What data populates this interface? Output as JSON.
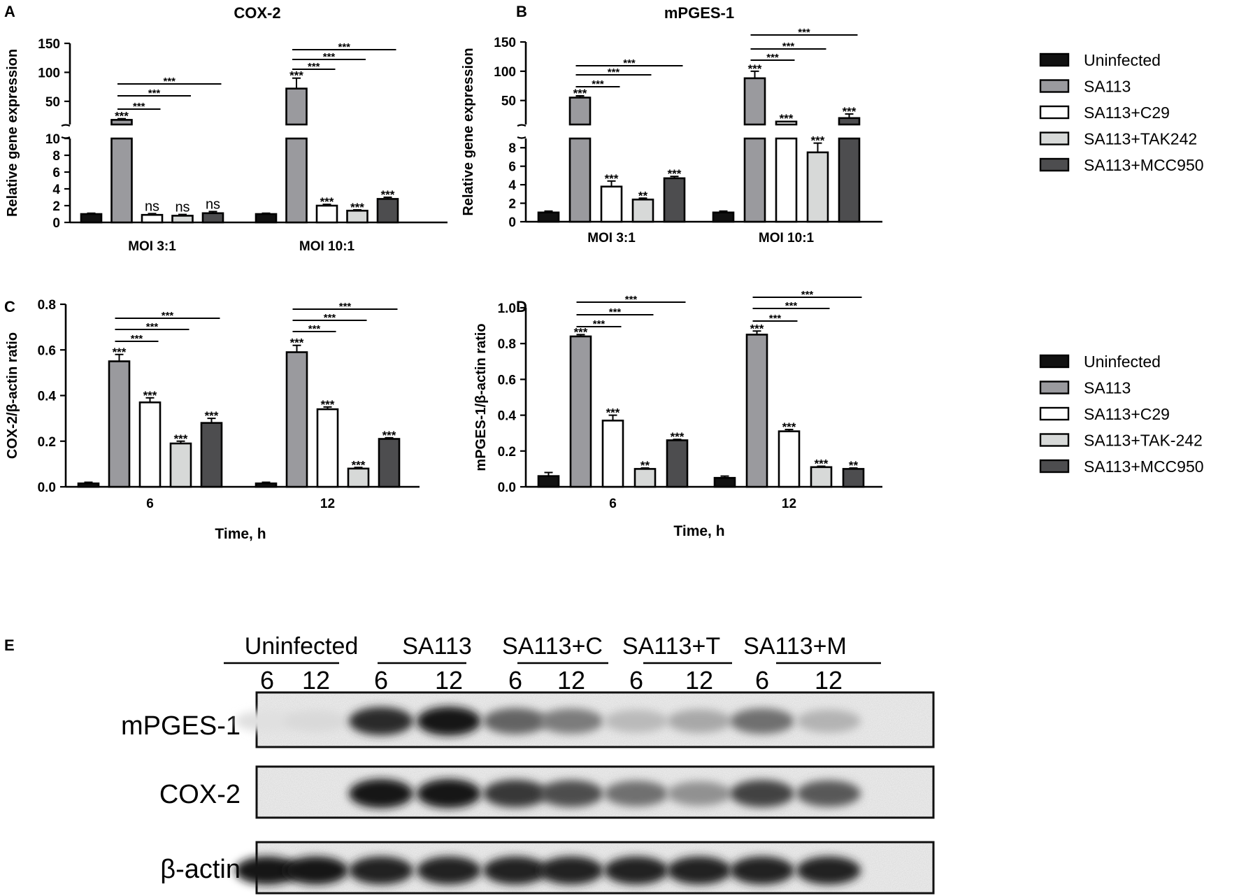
{
  "colors": {
    "Uninfected": "#111111",
    "SA113": "#9a9a9e",
    "SA113+C29": "#ffffff",
    "SA113+TAK242": "#d7d9d8",
    "SA113+MCC950": "#4d4d4f"
  },
  "legend_top": {
    "entries": [
      {
        "label": "Uninfected",
        "color_key": "Uninfected"
      },
      {
        "label": "SA113",
        "color_key": "SA113"
      },
      {
        "label": "SA113+C29",
        "color_key": "SA113+C29"
      },
      {
        "label": "SA113+TAK242",
        "color_key": "SA113+TAK242"
      },
      {
        "label": "SA113+MCC950",
        "color_key": "SA113+MCC950"
      }
    ]
  },
  "legend_bottom": {
    "entries": [
      {
        "label": "Uninfected",
        "color_key": "Uninfected"
      },
      {
        "label": "SA113",
        "color_key": "SA113"
      },
      {
        "label": "SA113+C29",
        "color_key": "SA113+C29"
      },
      {
        "label": "SA113+TAK-242",
        "color_key": "SA113+TAK242"
      },
      {
        "label": "SA113+MCC950",
        "color_key": "SA113+MCC950"
      }
    ]
  },
  "chart_data": [
    {
      "panel": "A",
      "type": "bar",
      "title": "COX-2",
      "ylabel": "Relative gene expression",
      "xlabel": "",
      "categories": [
        "MOI 3:1",
        "MOI 10:1"
      ],
      "axis_break": true,
      "lower_ylim": [
        0,
        10
      ],
      "lower_ticks": [
        0,
        2,
        4,
        6,
        8,
        10
      ],
      "upper_ylim": [
        10,
        150
      ],
      "upper_ticks": [
        50,
        100,
        150
      ],
      "series": [
        {
          "color_key": "Uninfected",
          "values": [
            1.0,
            1.0
          ],
          "errors": [
            0.1,
            0.1
          ],
          "labels": [
            "",
            ""
          ]
        },
        {
          "color_key": "SA113",
          "values": [
            18,
            72
          ],
          "errors": [
            2,
            18
          ],
          "labels": [
            "***",
            "***"
          ]
        },
        {
          "color_key": "SA113+C29",
          "values": [
            0.9,
            2.0
          ],
          "errors": [
            0.15,
            0.15
          ],
          "labels": [
            "ns",
            "***"
          ]
        },
        {
          "color_key": "SA113+TAK242",
          "values": [
            0.8,
            1.4
          ],
          "errors": [
            0.15,
            0.1
          ],
          "labels": [
            "ns",
            "***"
          ]
        },
        {
          "color_key": "SA113+MCC950",
          "values": [
            1.1,
            2.8
          ],
          "errors": [
            0.2,
            0.2
          ],
          "labels": [
            "ns",
            "***"
          ]
        }
      ],
      "brackets": [
        {
          "group": 0,
          "from": 1,
          "to": 2,
          "label": "***"
        },
        {
          "group": 0,
          "from": 1,
          "to": 3,
          "label": "***"
        },
        {
          "group": 0,
          "from": 1,
          "to": 4,
          "label": "***"
        },
        {
          "group": 1,
          "from": 1,
          "to": 2,
          "label": "***"
        },
        {
          "group": 1,
          "from": 1,
          "to": 3,
          "label": "***"
        },
        {
          "group": 1,
          "from": 1,
          "to": 4,
          "label": "***"
        }
      ]
    },
    {
      "panel": "B",
      "type": "bar",
      "title": "mPGES-1",
      "ylabel": "Relative gene expression",
      "xlabel": "",
      "categories": [
        "MOI 3:1",
        "MOI 10:1"
      ],
      "axis_break": true,
      "lower_ylim": [
        0,
        9
      ],
      "lower_ticks": [
        0,
        2,
        4,
        6,
        8
      ],
      "upper_ylim": [
        9,
        150
      ],
      "upper_ticks": [
        50,
        100,
        150
      ],
      "series": [
        {
          "color_key": "Uninfected",
          "values": [
            1.0,
            1.0
          ],
          "errors": [
            0.15,
            0.15
          ],
          "labels": [
            "",
            ""
          ]
        },
        {
          "color_key": "SA113",
          "values": [
            55,
            88
          ],
          "errors": [
            3,
            12
          ],
          "labels": [
            "***",
            "***"
          ]
        },
        {
          "color_key": "SA113+C29",
          "values": [
            3.8,
            14
          ],
          "errors": [
            0.6,
            1
          ],
          "labels": [
            "***",
            "***"
          ]
        },
        {
          "color_key": "SA113+TAK242",
          "values": [
            2.4,
            7.5
          ],
          "errors": [
            0.15,
            1.0
          ],
          "labels": [
            "**",
            "***"
          ]
        },
        {
          "color_key": "SA113+MCC950",
          "values": [
            4.7,
            20
          ],
          "errors": [
            0.2,
            7
          ],
          "labels": [
            "***",
            "***"
          ]
        }
      ],
      "brackets": [
        {
          "group": 0,
          "from": 1,
          "to": 2,
          "label": "***"
        },
        {
          "group": 0,
          "from": 1,
          "to": 3,
          "label": "***"
        },
        {
          "group": 0,
          "from": 1,
          "to": 4,
          "label": "***"
        },
        {
          "group": 1,
          "from": 1,
          "to": 2,
          "label": "***"
        },
        {
          "group": 1,
          "from": 1,
          "to": 3,
          "label": "***"
        },
        {
          "group": 1,
          "from": 1,
          "to": 4,
          "label": "***"
        }
      ]
    },
    {
      "panel": "C",
      "type": "bar",
      "title": "",
      "ylabel": "COX-2/β-actin ratio",
      "xlabel": "Time, h",
      "categories": [
        "6",
        "12"
      ],
      "axis_break": false,
      "ylim": [
        0,
        0.8
      ],
      "ticks": [
        "0.0",
        "0.2",
        "0.4",
        "0.6",
        "0.8"
      ],
      "series": [
        {
          "color_key": "Uninfected",
          "values": [
            0.015,
            0.015
          ],
          "errors": [
            0.005,
            0.005
          ],
          "labels": [
            "",
            ""
          ]
        },
        {
          "color_key": "SA113",
          "values": [
            0.55,
            0.59
          ],
          "errors": [
            0.03,
            0.03
          ],
          "labels": [
            "***",
            "***"
          ]
        },
        {
          "color_key": "SA113+C29",
          "values": [
            0.37,
            0.34
          ],
          "errors": [
            0.02,
            0.01
          ],
          "labels": [
            "***",
            "***"
          ]
        },
        {
          "color_key": "SA113+TAK242",
          "values": [
            0.19,
            0.08
          ],
          "errors": [
            0.01,
            0.005
          ],
          "labels": [
            "***",
            "***"
          ]
        },
        {
          "color_key": "SA113+MCC950",
          "values": [
            0.28,
            0.21
          ],
          "errors": [
            0.02,
            0.005
          ],
          "labels": [
            "***",
            "***"
          ]
        }
      ],
      "brackets": [
        {
          "group": 0,
          "from": 1,
          "to": 2,
          "label": "***"
        },
        {
          "group": 0,
          "from": 1,
          "to": 3,
          "label": "***"
        },
        {
          "group": 0,
          "from": 1,
          "to": 4,
          "label": "***"
        },
        {
          "group": 1,
          "from": 1,
          "to": 2,
          "label": "***"
        },
        {
          "group": 1,
          "from": 1,
          "to": 3,
          "label": "***"
        },
        {
          "group": 1,
          "from": 1,
          "to": 4,
          "label": "***"
        }
      ]
    },
    {
      "panel": "D",
      "type": "bar",
      "title": "",
      "ylabel": "mPGES-1/β-actin ratio",
      "xlabel": "Time, h",
      "categories": [
        "6",
        "12"
      ],
      "axis_break": false,
      "ylim": [
        0,
        1.0
      ],
      "ticks": [
        "0.0",
        "0.2",
        "0.4",
        "0.6",
        "0.8",
        "1.0"
      ],
      "series": [
        {
          "color_key": "Uninfected",
          "values": [
            0.06,
            0.05
          ],
          "errors": [
            0.02,
            0.01
          ],
          "labels": [
            "",
            ""
          ]
        },
        {
          "color_key": "SA113",
          "values": [
            0.84,
            0.85
          ],
          "errors": [
            0.01,
            0.02
          ],
          "labels": [
            "***",
            "***"
          ]
        },
        {
          "color_key": "SA113+C29",
          "values": [
            0.37,
            0.31
          ],
          "errors": [
            0.03,
            0.01
          ],
          "labels": [
            "***",
            "***"
          ]
        },
        {
          "color_key": "SA113+TAK242",
          "values": [
            0.1,
            0.11
          ],
          "errors": [
            0.005,
            0.005
          ],
          "labels": [
            "**",
            "***"
          ]
        },
        {
          "color_key": "SA113+MCC950",
          "values": [
            0.26,
            0.1
          ],
          "errors": [
            0.005,
            0.005
          ],
          "labels": [
            "***",
            "**"
          ]
        }
      ],
      "brackets": [
        {
          "group": 0,
          "from": 1,
          "to": 2,
          "label": "***"
        },
        {
          "group": 0,
          "from": 1,
          "to": 3,
          "label": "***"
        },
        {
          "group": 0,
          "from": 1,
          "to": 4,
          "label": "***"
        },
        {
          "group": 1,
          "from": 1,
          "to": 2,
          "label": "***"
        },
        {
          "group": 1,
          "from": 1,
          "to": 3,
          "label": "***"
        },
        {
          "group": 1,
          "from": 1,
          "to": 4,
          "label": "***"
        }
      ]
    }
  ],
  "western_blot": {
    "panel": "E",
    "groups": [
      "Uninfected",
      "SA113",
      "SA113+C",
      "SA113+T",
      "SA113+M"
    ],
    "timepoints": [
      "6",
      "12"
    ],
    "rows": [
      {
        "label": "mPGES-1",
        "intensities": [
          0.05,
          0.08,
          0.85,
          0.95,
          0.6,
          0.5,
          0.22,
          0.3,
          0.55,
          0.25
        ]
      },
      {
        "label": "COX-2",
        "intensities": [
          0.0,
          0.0,
          0.95,
          0.95,
          0.8,
          0.7,
          0.55,
          0.4,
          0.75,
          0.65
        ]
      },
      {
        "label": "β-actin",
        "intensities": [
          0.95,
          0.95,
          0.9,
          0.9,
          0.9,
          0.9,
          0.9,
          0.9,
          0.9,
          0.9
        ]
      }
    ]
  }
}
